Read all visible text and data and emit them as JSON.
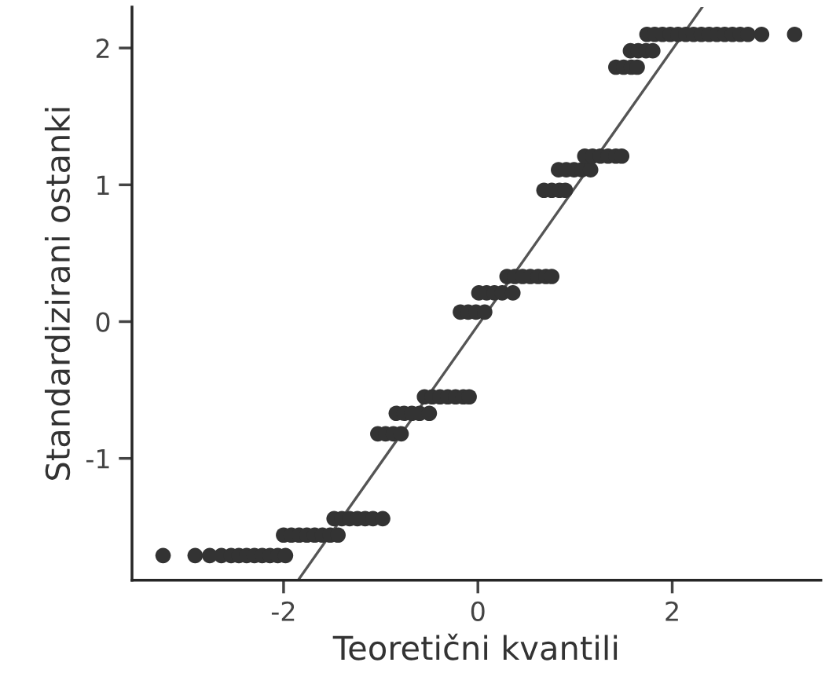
{
  "chart_data": {
    "type": "scatter",
    "xlabel": "Teoretični kvantili",
    "ylabel": "Standardizirani ostanki",
    "xlim": [
      -3.56,
      3.53
    ],
    "ylim": [
      -1.89,
      2.3
    ],
    "xticks": [
      -2,
      0,
      2
    ],
    "yticks": [
      -1,
      0,
      1,
      2
    ],
    "grid": false,
    "legend": false,
    "series": [
      {
        "marker": "circle",
        "color": "#333333",
        "x": [
          -3.24,
          -2.91,
          -2.76,
          -2.64,
          -2.54,
          -2.46,
          -2.38,
          -2.3,
          -2.22,
          -2.14,
          -2.06,
          -1.98,
          -2.0,
          -1.92,
          -1.84,
          -1.76,
          -1.68,
          -1.6,
          -1.52,
          -1.44,
          -1.48,
          -1.4,
          -1.32,
          -1.24,
          -1.16,
          -1.08,
          -0.98,
          -1.03,
          -0.95,
          -0.87,
          -0.79,
          -0.84,
          -0.76,
          -0.68,
          -0.6,
          -0.5,
          -0.55,
          -0.47,
          -0.39,
          -0.31,
          -0.23,
          -0.15,
          -0.09,
          -0.18,
          -0.1,
          -0.02,
          0.07,
          0.01,
          0.09,
          0.17,
          0.25,
          0.36,
          0.3,
          0.38,
          0.46,
          0.54,
          0.62,
          0.7,
          0.76,
          0.68,
          0.76,
          0.84,
          0.9,
          0.83,
          0.91,
          0.99,
          1.07,
          1.16,
          1.1,
          1.18,
          1.26,
          1.34,
          1.42,
          1.48,
          1.42,
          1.5,
          1.58,
          1.64,
          1.57,
          1.65,
          1.73,
          1.8,
          1.74,
          1.82,
          1.9,
          1.98,
          2.06,
          2.14,
          2.22,
          2.3,
          2.38,
          2.46,
          2.54,
          2.62,
          2.7,
          2.78,
          2.92,
          3.26
        ],
        "values": [
          -1.71,
          -1.71,
          -1.71,
          -1.71,
          -1.71,
          -1.71,
          -1.71,
          -1.71,
          -1.71,
          -1.71,
          -1.71,
          -1.71,
          -1.56,
          -1.56,
          -1.56,
          -1.56,
          -1.56,
          -1.56,
          -1.56,
          -1.56,
          -1.44,
          -1.44,
          -1.44,
          -1.44,
          -1.44,
          -1.44,
          -1.44,
          -0.82,
          -0.82,
          -0.82,
          -0.82,
          -0.67,
          -0.67,
          -0.67,
          -0.67,
          -0.67,
          -0.55,
          -0.55,
          -0.55,
          -0.55,
          -0.55,
          -0.55,
          -0.55,
          0.07,
          0.07,
          0.07,
          0.07,
          0.21,
          0.21,
          0.21,
          0.21,
          0.21,
          0.33,
          0.33,
          0.33,
          0.33,
          0.33,
          0.33,
          0.33,
          0.96,
          0.96,
          0.96,
          0.96,
          1.11,
          1.11,
          1.11,
          1.11,
          1.11,
          1.21,
          1.21,
          1.21,
          1.21,
          1.21,
          1.21,
          1.86,
          1.86,
          1.86,
          1.86,
          1.98,
          1.98,
          1.98,
          1.98,
          2.1,
          2.1,
          2.1,
          2.1,
          2.1,
          2.1,
          2.1,
          2.1,
          2.1,
          2.1,
          2.1,
          2.1,
          2.1,
          2.1,
          2.1,
          2.1
        ]
      },
      {
        "type": "line",
        "color": "#555555",
        "x": [
          -1.85,
          2.31
        ],
        "values": [
          -1.89,
          2.3
        ]
      }
    ]
  }
}
